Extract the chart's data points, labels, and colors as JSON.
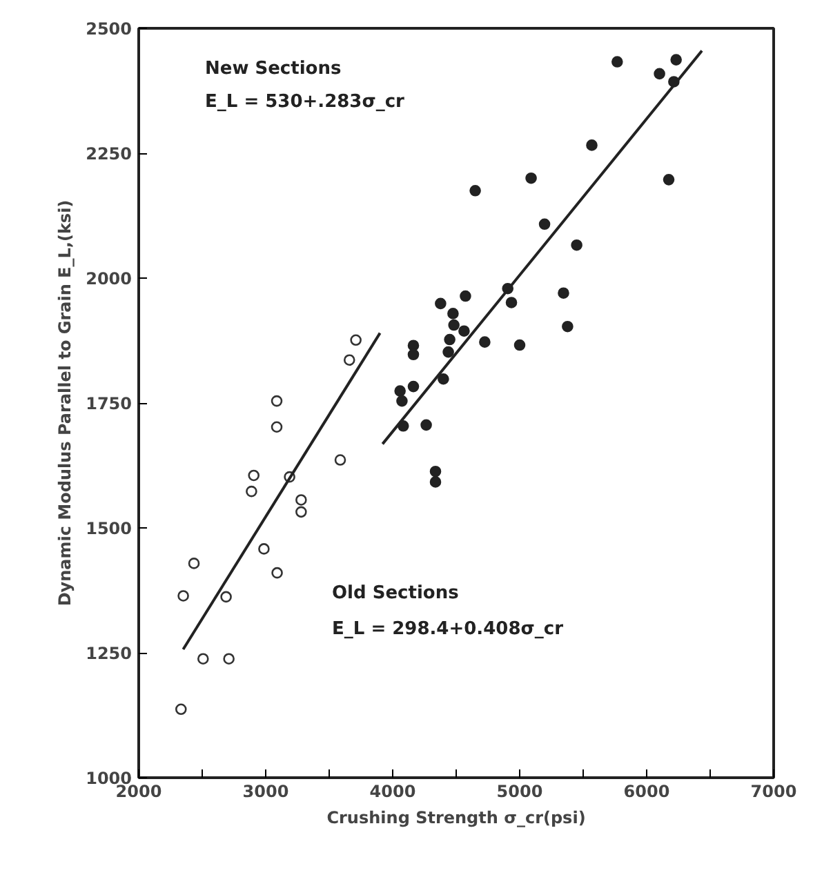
{
  "chart_data": {
    "type": "scatter",
    "xlabel": "Crushing Strength σ_cr(psi)",
    "ylabel": "Dynamic Modulus Parallel to Grain E_L,(ksi)",
    "annotations": [
      "New Sections",
      "E_L = 530+.283σ_cr",
      "Old Sections",
      "E_L = 298.4+0.408σ_cr"
    ],
    "xlim": [
      2000,
      7000
    ],
    "ylim": [
      1000,
      2500
    ],
    "xticks": [
      2000,
      {
        "value": 2500,
        "label": null
      },
      3000,
      {
        "value": 3500,
        "label": null
      },
      4000,
      {
        "value": 4500,
        "label": null
      },
      5000,
      {
        "value": 5500,
        "label": null
      },
      6000,
      {
        "value": 6500,
        "label": null
      },
      7000
    ],
    "yticks": [
      1000,
      1250,
      1500,
      1750,
      2000,
      2250,
      2500
    ],
    "grid": false,
    "series": [
      {
        "type": "scatter",
        "marker": "circle_open",
        "color": "#333333",
        "x": [
          2333,
          2351,
          2435,
          2507,
          2688,
          2710,
          2986,
          3090,
          2888,
          2906,
          3087,
          3087,
          3188,
          3279,
          3279,
          3587,
          3659,
          3710
        ],
        "values": [
          1137,
          1364,
          1429,
          1238,
          1362,
          1238,
          1458,
          1410,
          1573,
          1605,
          1702,
          1754,
          1602,
          1556,
          1532,
          1636,
          1836,
          1876
        ]
      },
      {
        "type": "scatter",
        "marker": "circle",
        "color": "#222222",
        "x": [
          5196,
          5449,
          5345,
          5377,
          4906,
          4935,
          4573,
          4377,
          4475,
          4482,
          4562,
          4449,
          4438,
          4725,
          5000,
          4163,
          4163,
          4399,
          4163,
          4058,
          4073,
          4083,
          4264,
          4337,
          4337,
          5768,
          6232,
          6101,
          6214,
          5568,
          6174,
          5090,
          4650
        ],
        "values": [
          2108,
          2066,
          1970,
          1903,
          1979,
          1951,
          1964,
          1949,
          1929,
          1906,
          1894,
          1877,
          1852,
          1872,
          1866,
          1865,
          1847,
          1798,
          1783,
          1774,
          1754,
          1704,
          1706,
          1613,
          1592,
          2433,
          2437,
          2409,
          2393,
          2266,
          2197,
          2200,
          2175
        ]
      },
      {
        "type": "line",
        "color": "#222222",
        "x": [
          2350,
          3900
        ],
        "values": [
          1257,
          1890
        ]
      },
      {
        "type": "line",
        "color": "#222222",
        "x": [
          3920,
          6435
        ],
        "values": [
          1668,
          2455
        ]
      }
    ]
  }
}
